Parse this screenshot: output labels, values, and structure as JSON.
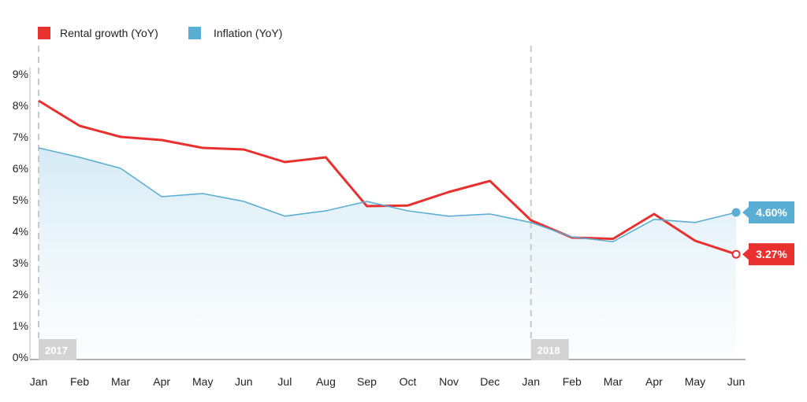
{
  "chart_data": {
    "type": "line",
    "categories": [
      "Jan",
      "Feb",
      "Mar",
      "Apr",
      "May",
      "Jun",
      "Jul",
      "Aug",
      "Sep",
      "Oct",
      "Nov",
      "Dec",
      "Jan",
      "Feb",
      "Mar",
      "Apr",
      "May",
      "Jun"
    ],
    "years": [
      {
        "label": "2017",
        "start_index": 0
      },
      {
        "label": "2018",
        "start_index": 12
      }
    ],
    "series": [
      {
        "name": "Rental growth (YoY)",
        "color": "#e8312f",
        "values": [
          8.15,
          7.35,
          7.0,
          6.9,
          6.65,
          6.6,
          6.2,
          6.35,
          4.8,
          4.82,
          5.25,
          5.6,
          4.35,
          3.8,
          3.76,
          4.55,
          3.7,
          3.27
        ],
        "end_label": "3.27%"
      },
      {
        "name": "Inflation (YoY)",
        "color": "#5aaed3",
        "values": [
          6.65,
          6.35,
          6.0,
          5.1,
          5.2,
          4.95,
          4.48,
          4.65,
          4.95,
          4.65,
          4.48,
          4.55,
          4.28,
          3.82,
          3.67,
          4.38,
          4.28,
          4.6
        ],
        "end_label": "4.60%"
      }
    ],
    "yticks": [
      "0%",
      "1%",
      "2%",
      "3%",
      "4%",
      "5%",
      "6%",
      "7%",
      "8%",
      "9%"
    ],
    "ylim": [
      0,
      9
    ],
    "legend_position": "top-left",
    "grid": false
  }
}
